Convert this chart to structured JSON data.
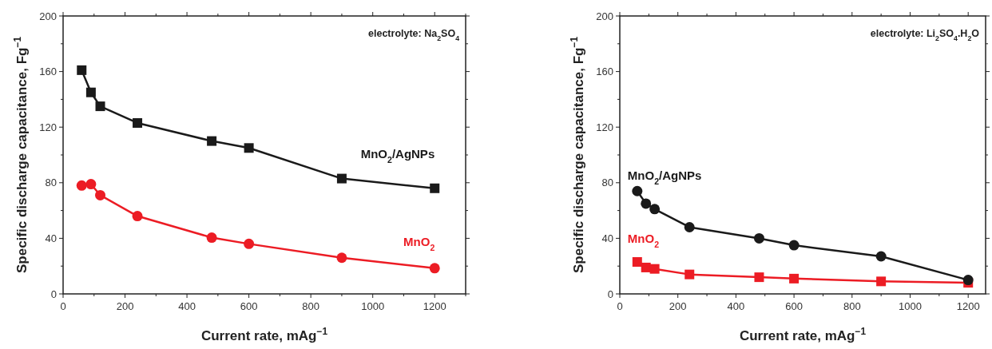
{
  "chart_data": [
    {
      "type": "line",
      "xlabel": "Current rate, mAg$^{−1}$",
      "ylabel": "Specific discharge capacitance, Fg$^{−1}$",
      "annotations": [
        "electrolyte: Na$_{2}$SO$_{4}$"
      ],
      "xlim": [
        0,
        1300
      ],
      "ylim": [
        0,
        200
      ],
      "xticks": [
        0,
        {
          "value": 100,
          "label": null
        },
        200,
        {
          "value": 300,
          "label": null
        },
        400,
        {
          "value": 500,
          "label": null
        },
        600,
        {
          "value": 700,
          "label": null
        },
        800,
        {
          "value": 900,
          "label": null
        },
        1000,
        {
          "value": 1100,
          "label": null
        },
        1200,
        {
          "value": 1300,
          "label": null
        }
      ],
      "yticks": [
        0,
        {
          "value": 20,
          "label": null
        },
        40,
        {
          "value": 60,
          "label": null
        },
        80,
        {
          "value": 100,
          "label": null
        },
        120,
        {
          "value": 140,
          "label": null
        },
        160,
        {
          "value": 180,
          "label": null
        },
        200
      ],
      "grid": false,
      "line_style": "solid",
      "series": [
        {
          "name": "MnO$_{2}$/AgNPs",
          "color": "#1a1a1a",
          "marker": "square",
          "x": [
            60,
            90,
            120,
            240,
            480,
            600,
            900,
            1200
          ],
          "values": [
            161,
            145,
            135,
            123,
            110,
            105,
            83,
            76
          ]
        },
        {
          "name": "MnO$_{2}$",
          "color": "#ec1c24",
          "marker": "circle",
          "x": [
            60,
            90,
            120,
            240,
            480,
            600,
            900,
            1200
          ],
          "values": [
            78,
            79,
            71,
            56,
            40.5,
            36,
            26,
            18.5
          ]
        }
      ]
    },
    {
      "type": "line",
      "xlabel": "Current rate, mAg$^{−1}$",
      "ylabel": "Specific discharge capacitance, Fg$^{−1}$",
      "annotations": [
        "electrolyte: Li$_{2}$SO$_{4}$.H$_{2}$O"
      ],
      "xlim": [
        0,
        1260
      ],
      "ylim": [
        0,
        200
      ],
      "xticks": [
        0,
        {
          "value": 100,
          "label": null
        },
        200,
        {
          "value": 300,
          "label": null
        },
        400,
        {
          "value": 500,
          "label": null
        },
        600,
        {
          "value": 700,
          "label": null
        },
        800,
        {
          "value": 900,
          "label": null
        },
        1000,
        {
          "value": 1100,
          "label": null
        },
        1200
      ],
      "yticks": [
        0,
        {
          "value": 20,
          "label": null
        },
        40,
        {
          "value": 60,
          "label": null
        },
        80,
        {
          "value": 100,
          "label": null
        },
        120,
        {
          "value": 140,
          "label": null
        },
        160,
        {
          "value": 180,
          "label": null
        },
        200
      ],
      "grid": false,
      "line_style": "solid",
      "series": [
        {
          "name": "MnO$_{2}$/AgNPs",
          "color": "#1a1a1a",
          "marker": "circle",
          "x": [
            60,
            90,
            120,
            240,
            480,
            600,
            900,
            1200
          ],
          "values": [
            74,
            65,
            61,
            48,
            40,
            35,
            27,
            10
          ]
        },
        {
          "name": "MnO$_{2}$",
          "color": "#ec1c24",
          "marker": "square",
          "x": [
            60,
            90,
            120,
            240,
            480,
            600,
            900,
            1200
          ],
          "values": [
            23,
            19,
            18,
            14,
            12,
            11,
            9,
            8
          ]
        }
      ]
    }
  ]
}
